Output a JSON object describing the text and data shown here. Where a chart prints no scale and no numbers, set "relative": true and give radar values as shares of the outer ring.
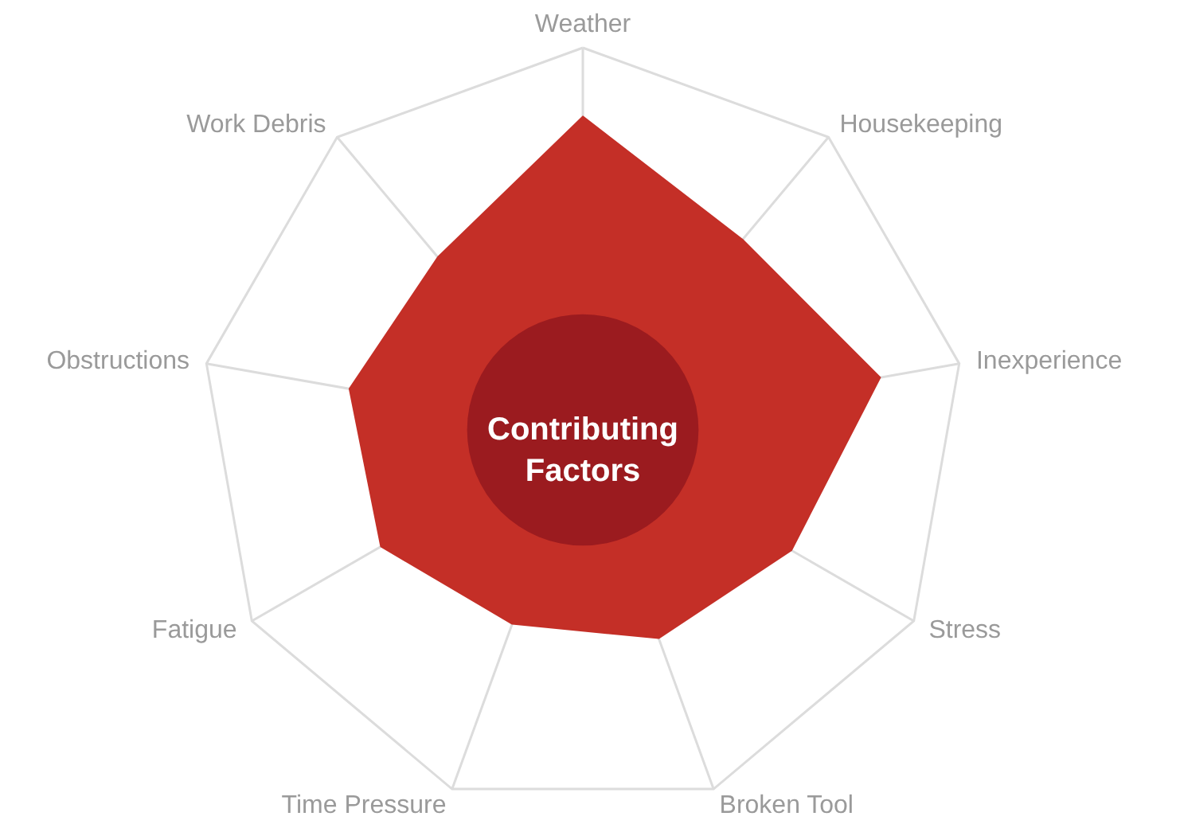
{
  "chart_data": {
    "type": "radar",
    "relative": true,
    "grid": true,
    "categories": [
      "Weather",
      "Housekeeping",
      "Inexperience",
      "Stress",
      "Broken Tool",
      "Time Pressure",
      "Fatigue",
      "Obstructions",
      "Work Debris"
    ],
    "series": [
      {
        "color": "#c42f27",
        "values": [
          0.82,
          0.65,
          0.79,
          0.63,
          0.58,
          0.54,
          0.61,
          0.62,
          0.59
        ]
      }
    ],
    "annotations": [
      "Contributing Factors"
    ]
  }
}
